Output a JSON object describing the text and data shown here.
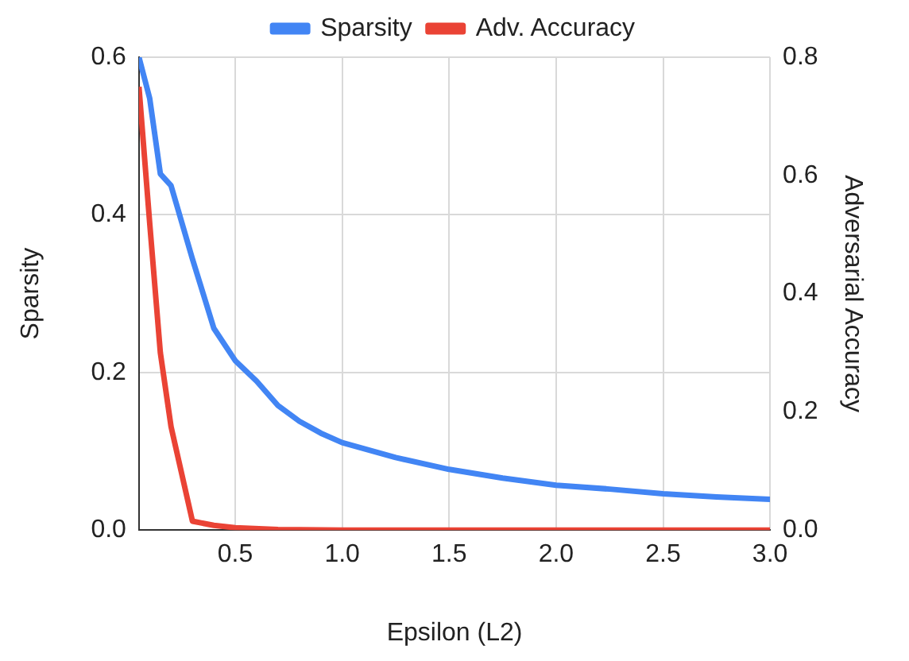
{
  "chart_data": {
    "type": "line",
    "xlabel": "Epsilon (L2)",
    "ylabel": "Sparsity",
    "y2label": "Adversarial Accuracy",
    "legend": "top",
    "grid": true,
    "marker": "none",
    "line_style": "solid",
    "xlim": [
      0.05,
      3.0
    ],
    "xticks": [
      0.5,
      {
        "value": 1,
        "label": "1.0"
      },
      1.5,
      {
        "value": 2,
        "label": "2.0"
      },
      2.5,
      {
        "value": 3,
        "label": "3.0"
      }
    ],
    "ylim": [
      0,
      0.6
    ],
    "yticks": [
      {
        "value": 0,
        "label": "0.0"
      },
      0.2,
      0.4,
      0.6
    ],
    "y2lim": [
      0,
      0.8
    ],
    "y2ticks": [
      {
        "value": 0,
        "label": "0.0"
      },
      0.2,
      0.4,
      0.6,
      0.8
    ],
    "series": [
      {
        "name": "Sparsity",
        "color": "#4285f4",
        "x": [
          0.05,
          0.1,
          0.15,
          0.2,
          0.3,
          0.4,
          0.5,
          0.6,
          0.7,
          0.8,
          0.9,
          1.0,
          1.25,
          1.5,
          1.75,
          2.0,
          2.25,
          2.5,
          2.75,
          3.0
        ],
        "values": [
          0.6,
          0.548,
          0.452,
          0.437,
          0.344,
          0.256,
          0.215,
          0.189,
          0.158,
          0.138,
          0.123,
          0.111,
          0.092,
          0.077,
          0.066,
          0.057,
          0.052,
          0.046,
          0.042,
          0.039
        ]
      },
      {
        "name": "Adv. Accuracy",
        "color": "#ea4335",
        "axis": "y2",
        "x": [
          0.05,
          0.1,
          0.15,
          0.2,
          0.3,
          0.4,
          0.5,
          0.7,
          1.0,
          3.0
        ],
        "values": [
          0.75,
          0.52,
          0.3,
          0.175,
          0.015,
          0.008,
          0.004,
          0.001,
          0,
          0
        ]
      }
    ]
  }
}
